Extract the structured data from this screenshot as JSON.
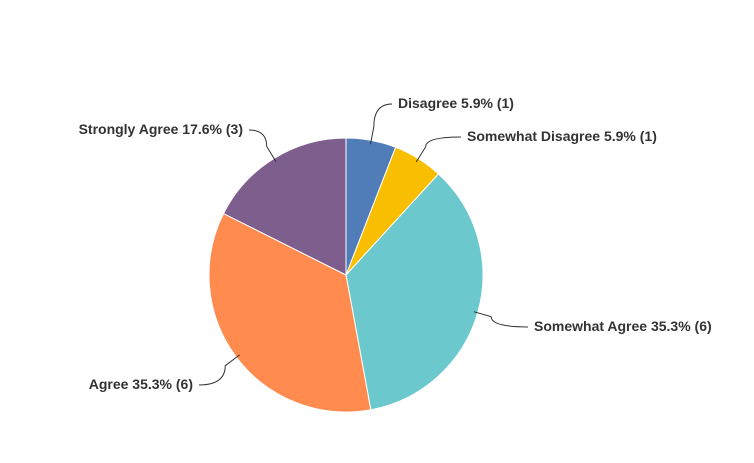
{
  "chart_data": {
    "type": "pie",
    "categories": [
      "Disagree",
      "Somewhat Disagree",
      "Somewhat Agree",
      "Agree",
      "Strongly Agree"
    ],
    "values": [
      5.9,
      5.9,
      35.3,
      35.3,
      17.6
    ],
    "value_labels": [
      "5.9% (1)",
      "5.9% (1)",
      "35.3% (6)",
      "35.3% (6)",
      "17.6% (3)"
    ],
    "colors": [
      "#507cb8",
      "#f9be00",
      "#6bc8cd",
      "#ff8b4f",
      "#7d5e8d"
    ]
  }
}
